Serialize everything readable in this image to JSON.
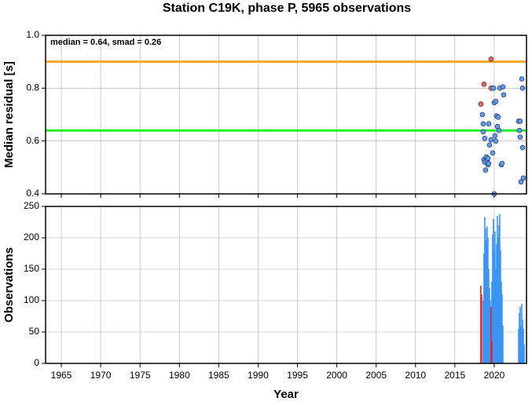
{
  "chart_data": [
    {
      "type": "scatter",
      "title": "Station C19K, phase P, 5965 observations",
      "annotation": "median = 0.64, smad = 0.26",
      "ylabel": "Median residual [s]",
      "xlim": [
        1963,
        2024.1
      ],
      "xticks": [
        1965,
        1970,
        1975,
        1980,
        1985,
        1990,
        1995,
        2000,
        2005,
        2010,
        2015,
        2020
      ],
      "ylim": [
        0.4,
        1.0
      ],
      "yticks": [
        0.4,
        0.6,
        0.8,
        {
          "value": 1,
          "label": "1.0"
        }
      ],
      "grid": true,
      "hlines": [
        {
          "value": 0.9,
          "color": "#f5a623"
        },
        {
          "value": 0.64,
          "color": "#22ee22"
        }
      ],
      "series": [
        {
          "color": "#f0625a",
          "x": [
            2018.3,
            2018.7,
            2019.6,
            2019.6
          ],
          "y": [
            0.74,
            0.815,
            0.91,
            0.8
          ]
        },
        {
          "color": "#5b9bf0",
          "x": [
            2018.5,
            2018.6,
            2018.6,
            2018.8,
            2018.7,
            2018.8,
            2018.9,
            2019.0,
            2019.1,
            2019.2,
            2019.2,
            2019.3,
            2019.4,
            2019.3,
            2019.6,
            2019.8,
            2019.9,
            2020.0,
            2020.2,
            2020.1,
            2020.3,
            2020.5,
            2020.4,
            2020.2,
            2020.6,
            2020.7,
            2020.9,
            2021.0,
            2021.1,
            2021.2,
            2020.0,
            2023.1,
            2023.3,
            2023.2,
            2023.3,
            2023.5,
            2023.6,
            2023.6,
            2023.4,
            2023.7
          ],
          "y": [
            0.7,
            0.665,
            0.635,
            0.61,
            0.53,
            0.52,
            0.49,
            0.54,
            0.525,
            0.51,
            0.535,
            0.515,
            0.585,
            0.665,
            0.605,
            0.555,
            0.8,
            0.745,
            0.75,
            0.62,
            0.695,
            0.69,
            0.655,
            0.6,
            0.64,
            0.8,
            0.51,
            0.515,
            0.805,
            0.775,
            0.4,
            0.675,
            0.675,
            0.64,
            0.615,
            0.835,
            0.8,
            0.575,
            0.445,
            0.46
          ]
        }
      ]
    },
    {
      "type": "bar",
      "ylabel": "Observations",
      "xlabel": "Year",
      "xlim": [
        1963,
        2024.1
      ],
      "xticks": [
        1965,
        1970,
        1975,
        1980,
        1985,
        1990,
        1995,
        2000,
        2005,
        2010,
        2015,
        2020
      ],
      "ylim": [
        0,
        250
      ],
      "yticks": [
        0,
        50,
        100,
        150,
        200,
        250
      ],
      "grid": true,
      "series": [
        {
          "color": "#3a95f5",
          "x": [
            2018.6,
            2018.7,
            2018.8,
            2018.9,
            2019.0,
            2019.1,
            2019.2,
            2019.3,
            2019.4,
            2019.5,
            2019.6,
            2019.7,
            2019.8,
            2019.9,
            2020.0,
            2020.1,
            2020.2,
            2020.3,
            2020.4,
            2020.5,
            2020.6,
            2020.7,
            2020.8,
            2020.9,
            2021.0,
            2021.1,
            2023.1,
            2023.2,
            2023.3,
            2023.4,
            2023.5,
            2023.6,
            2023.7,
            2023.8
          ],
          "values": [
            100,
            175,
            233,
            215,
            195,
            218,
            200,
            150,
            120,
            100,
            90,
            130,
            205,
            230,
            180,
            210,
            150,
            190,
            235,
            200,
            220,
            238,
            180,
            130,
            110,
            60,
            55,
            80,
            90,
            60,
            95,
            70,
            55,
            30
          ]
        },
        {
          "color": "#f02020",
          "x": [
            2018.3,
            2018.4,
            2019.6,
            2019.7
          ],
          "values": [
            124,
            110,
            90,
            35
          ]
        }
      ]
    }
  ]
}
